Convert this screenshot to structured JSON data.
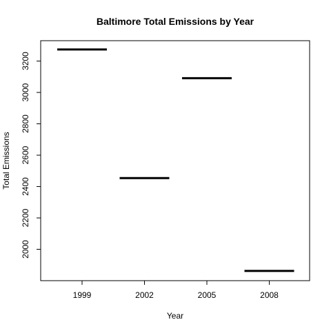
{
  "chart_data": {
    "type": "bar",
    "title": "Baltimore Total Emissions by Year",
    "xlabel": "Year",
    "ylabel": "Total Emissions",
    "categories": [
      "1999",
      "2002",
      "2005",
      "2008"
    ],
    "values": [
      3274,
      2454,
      3091,
      1862
    ],
    "ylim": [
      1800,
      3330
    ],
    "yticks": [
      "2000",
      "2200",
      "2400",
      "2600",
      "2800",
      "3000",
      "3200"
    ],
    "grid": false,
    "legend": "none"
  }
}
